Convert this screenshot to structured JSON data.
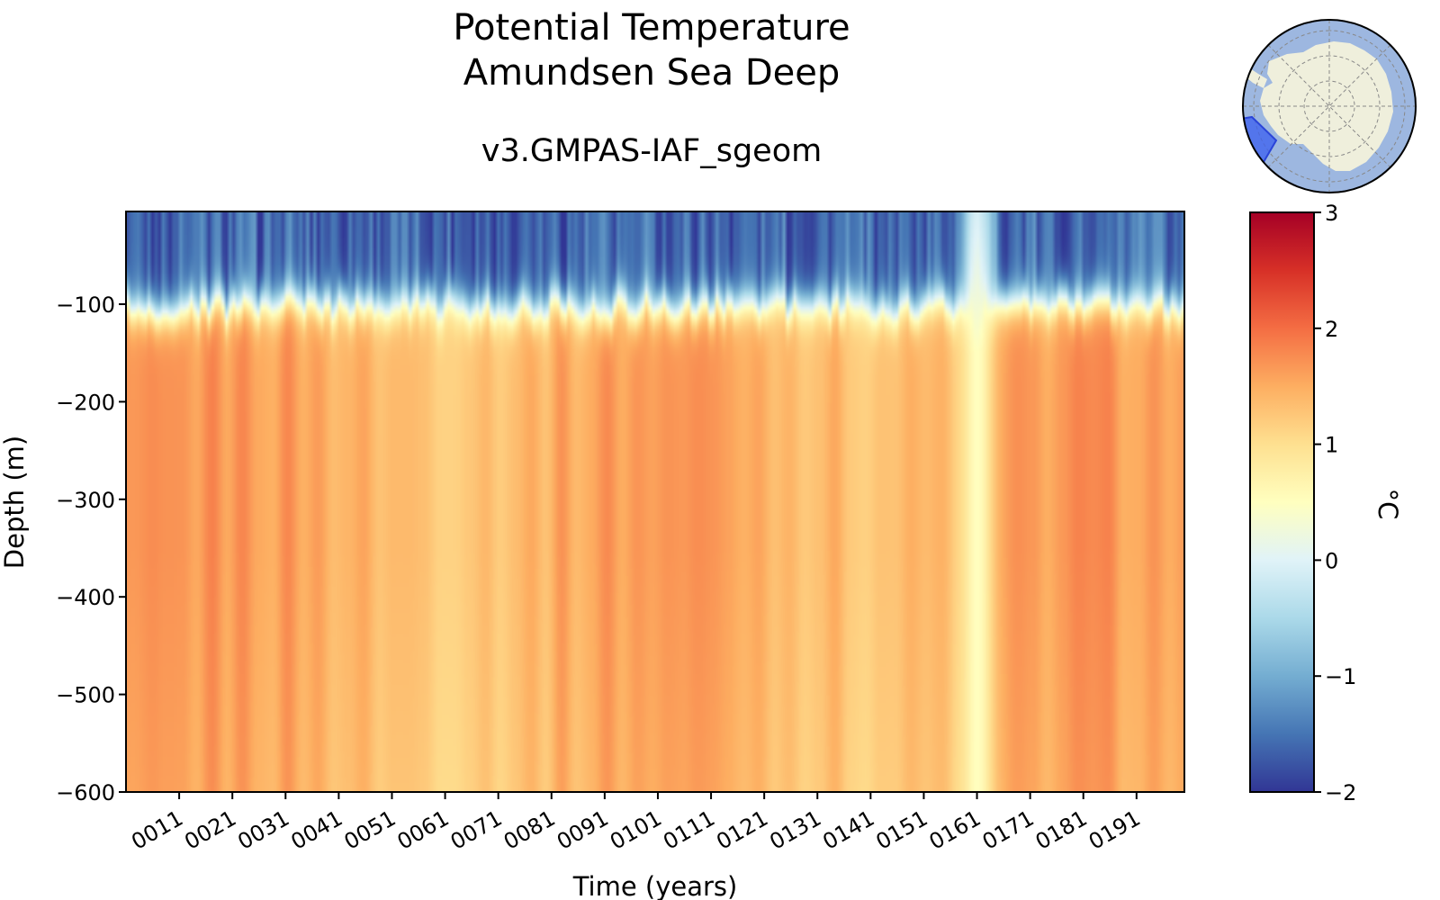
{
  "chart_data": {
    "type": "heatmap",
    "title": [
      "Potential Temperature",
      "Amundsen Sea Deep"
    ],
    "subtitle": "v3.GMPAS-IAF_sgeom",
    "xlabel": "Time (years)",
    "ylabel": "Depth (m)",
    "xlim": [
      1,
      200
    ],
    "ylim": [
      -600,
      -5
    ],
    "x_ticks": [
      {
        "value": 11,
        "label": "0011"
      },
      {
        "value": 21,
        "label": "0021"
      },
      {
        "value": 31,
        "label": "0031"
      },
      {
        "value": 41,
        "label": "0041"
      },
      {
        "value": 51,
        "label": "0051"
      },
      {
        "value": 61,
        "label": "0061"
      },
      {
        "value": 71,
        "label": "0071"
      },
      {
        "value": 81,
        "label": "0081"
      },
      {
        "value": 91,
        "label": "0091"
      },
      {
        "value": 101,
        "label": "0101"
      },
      {
        "value": 111,
        "label": "0111"
      },
      {
        "value": 121,
        "label": "0121"
      },
      {
        "value": 131,
        "label": "0131"
      },
      {
        "value": 141,
        "label": "0141"
      },
      {
        "value": 151,
        "label": "0151"
      },
      {
        "value": 161,
        "label": "0161"
      },
      {
        "value": 171,
        "label": "0171"
      },
      {
        "value": 181,
        "label": "0181"
      },
      {
        "value": 191,
        "label": "0191"
      }
    ],
    "y_ticks": [
      {
        "value": -100,
        "label": "−100"
      },
      {
        "value": -200,
        "label": "−200"
      },
      {
        "value": -300,
        "label": "−300"
      },
      {
        "value": -400,
        "label": "−400"
      },
      {
        "value": -500,
        "label": "−500"
      },
      {
        "value": -600,
        "label": "−600"
      }
    ],
    "colorbar": {
      "label": "°C",
      "vmin": -2,
      "vmax": 3,
      "colormap": "RdYlBu_r",
      "ticks": [
        {
          "value": 3,
          "label": "3"
        },
        {
          "value": 2,
          "label": "2"
        },
        {
          "value": 1,
          "label": "1"
        },
        {
          "value": 0,
          "label": "0"
        },
        {
          "value": -1,
          "label": "−1"
        },
        {
          "value": -2,
          "label": "−2"
        }
      ]
    },
    "field_summary": {
      "surface_layer_temp_c": -1.6,
      "thermocline_depth_m": -100,
      "deep_temp_c": 1.5,
      "cold_anomaly_years": [
        158,
        164
      ],
      "cold_anomaly_deep_temp_c": 0.5
    },
    "inset_map": {
      "projection": "south-polar stereographic",
      "highlighted_region": "Amundsen Sea",
      "ocean_color": "#9db7e0",
      "land_color": "#efefdc",
      "region_color": "#3b5ff0"
    }
  }
}
